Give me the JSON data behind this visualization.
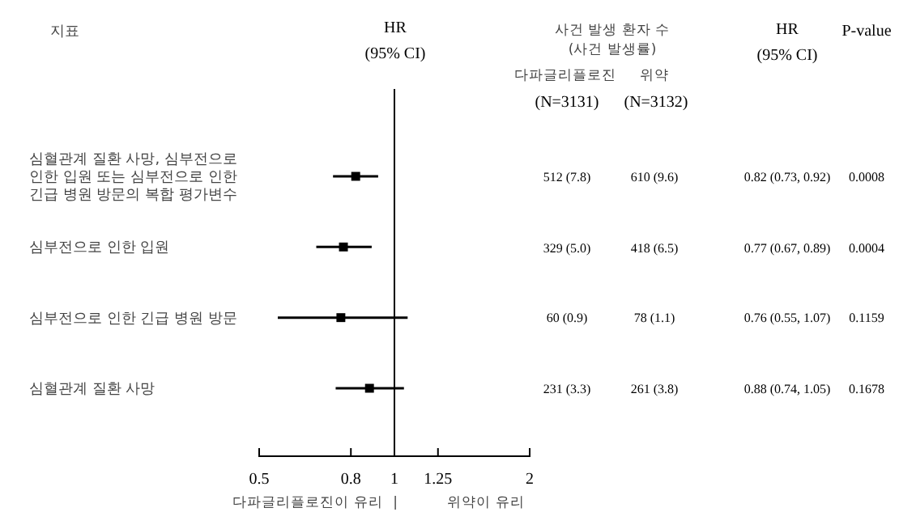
{
  "chart_data": {
    "type": "scatter",
    "orientation": "horizontal",
    "ylabel": "지표",
    "categories": [
      "심혈관계 질환 사망, 심부전으로 인한 입원 또는 심부전으로 인한 긴급 병원 방문의 복합 평가변수",
      "심부전으로 인한 입원",
      "심부전으로 인한 긴급 병원 방문",
      "심혈관계 질환 사망"
    ],
    "values": [
      0.82,
      0.77,
      0.76,
      0.88
    ],
    "errors": [
      [
        0.73,
        0.92
      ],
      [
        0.67,
        0.89
      ],
      [
        0.55,
        1.07
      ],
      [
        0.74,
        1.05
      ]
    ],
    "color": "#000000",
    "marker": "square",
    "log": "x",
    "xlim": [
      0.5,
      2
    ],
    "xticks": [
      0.5,
      0.8,
      1,
      1.25,
      2
    ],
    "ref_lines": [
      {
        "axis": "x",
        "value": 1,
        "color": "#000000"
      }
    ],
    "annotations": [
      "HR",
      "(95% CI)",
      "사건 발생 환자 수",
      "(사건 발생률)",
      "다파글리플로진",
      "위약",
      "(N=3131)",
      "(N=3132)",
      "HR",
      "(95% CI)",
      "P-value",
      "512 (7.8)",
      "610 (9.6)",
      "0.82 (0.73, 0.92)",
      "0.0008",
      "329 (5.0)",
      "418 (6.5)",
      "0.77 (0.67, 0.89)",
      "0.0004",
      "60 (0.9)",
      "78 (1.1)",
      "0.76 (0.55, 1.07)",
      "0.1159",
      "231 (3.3)",
      "261 (3.8)",
      "0.88 (0.74, 1.05)",
      "0.1678",
      "다파글리플로진이 유리",
      "|",
      "위약이 유리"
    ]
  }
}
